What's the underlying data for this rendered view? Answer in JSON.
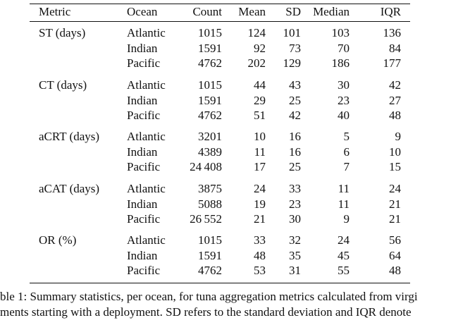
{
  "table": {
    "header": [
      "Metric",
      "Ocean",
      "Count",
      "Mean",
      "SD",
      "Median",
      "IQR"
    ],
    "groups": [
      {
        "metric": "ST (days)",
        "rows": [
          [
            "Atlantic",
            "1015",
            "124",
            "101",
            "103",
            "136"
          ],
          [
            "Indian",
            "1591",
            "92",
            "73",
            "70",
            "84"
          ],
          [
            "Pacific",
            "4762",
            "202",
            "129",
            "186",
            "177"
          ]
        ]
      },
      {
        "metric": "CT (days)",
        "rows": [
          [
            "Atlantic",
            "1015",
            "44",
            "43",
            "30",
            "42"
          ],
          [
            "Indian",
            "1591",
            "29",
            "25",
            "23",
            "27"
          ],
          [
            "Pacific",
            "4762",
            "51",
            "42",
            "40",
            "48"
          ]
        ]
      },
      {
        "metric": "aCRT (days)",
        "rows": [
          [
            "Atlantic",
            "3201",
            "10",
            "16",
            "5",
            "9"
          ],
          [
            "Indian",
            "4389",
            "11",
            "16",
            "6",
            "10"
          ],
          [
            "Pacific",
            "24 408",
            "17",
            "25",
            "7",
            "15"
          ]
        ]
      },
      {
        "metric": "aCAT (days)",
        "rows": [
          [
            "Atlantic",
            "3875",
            "24",
            "33",
            "11",
            "24"
          ],
          [
            "Indian",
            "5088",
            "19",
            "23",
            "11",
            "21"
          ],
          [
            "Pacific",
            "26 552",
            "21",
            "30",
            "9",
            "21"
          ]
        ]
      },
      {
        "metric": "OR (%)",
        "rows": [
          [
            "Atlantic",
            "1015",
            "33",
            "32",
            "24",
            "56"
          ],
          [
            "Indian",
            "1591",
            "48",
            "35",
            "45",
            "64"
          ],
          [
            "Pacific",
            "4762",
            "53",
            "31",
            "55",
            "48"
          ]
        ]
      }
    ]
  },
  "caption": {
    "lines": [
      "ble 1: Summary statistics, per ocean, for tuna aggregation metrics calculated from virgi",
      "ments starting with a deployment. SD refers to the standard deviation and IQR denote"
    ]
  }
}
